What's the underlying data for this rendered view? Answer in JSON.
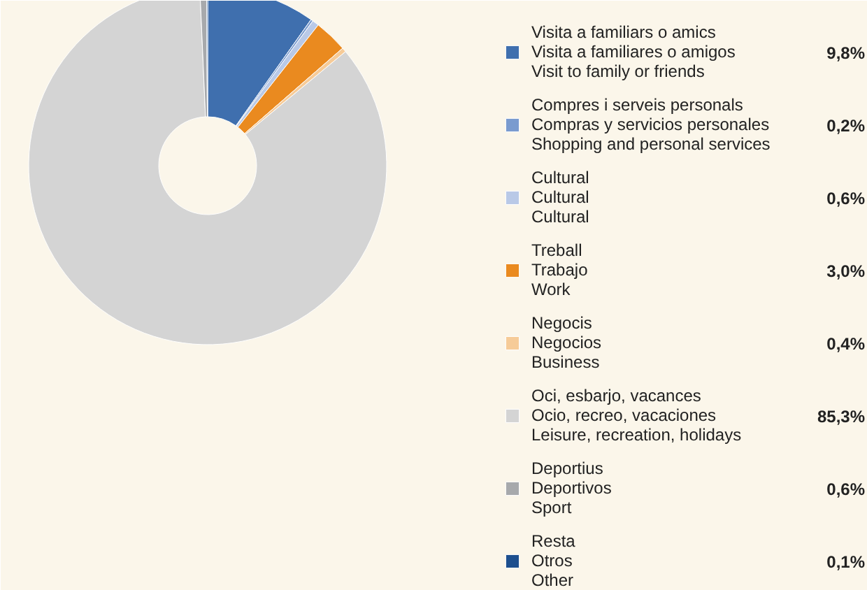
{
  "chart_data": {
    "type": "donut",
    "categories": [
      "Visita a familiars o amics\nVisita a familiares o amigos\nVisit to family or friends",
      "Compres i serveis personals\nCompras y servicios personales\nShopping and personal services",
      "Cultural\nCultural\nCultural",
      "Treball\nTrabajo\nWork",
      "Negocis\nNegocios\nBusiness",
      "Oci, esbarjo, vacances\nOcio, recreo, vacaciones\nLeisure, recreation, holidays",
      "Deportius\nDeportivos\nSport",
      "Resta\nOtros\nOther"
    ],
    "values": [
      9.8,
      0.2,
      0.6,
      3.0,
      0.4,
      85.3,
      0.6,
      0.1
    ],
    "value_labels": [
      "9,8%",
      "0,2%",
      "0,6%",
      "3,0%",
      "0,4%",
      "85,3%",
      "0,6%",
      "0,1%"
    ],
    "colors": [
      "#3f6fae",
      "#7a9bcf",
      "#b9c9e7",
      "#ea8a1f",
      "#f6cb98",
      "#d4d4d4",
      "#a7a9ac",
      "#1d4f8e"
    ],
    "legend": "right"
  }
}
